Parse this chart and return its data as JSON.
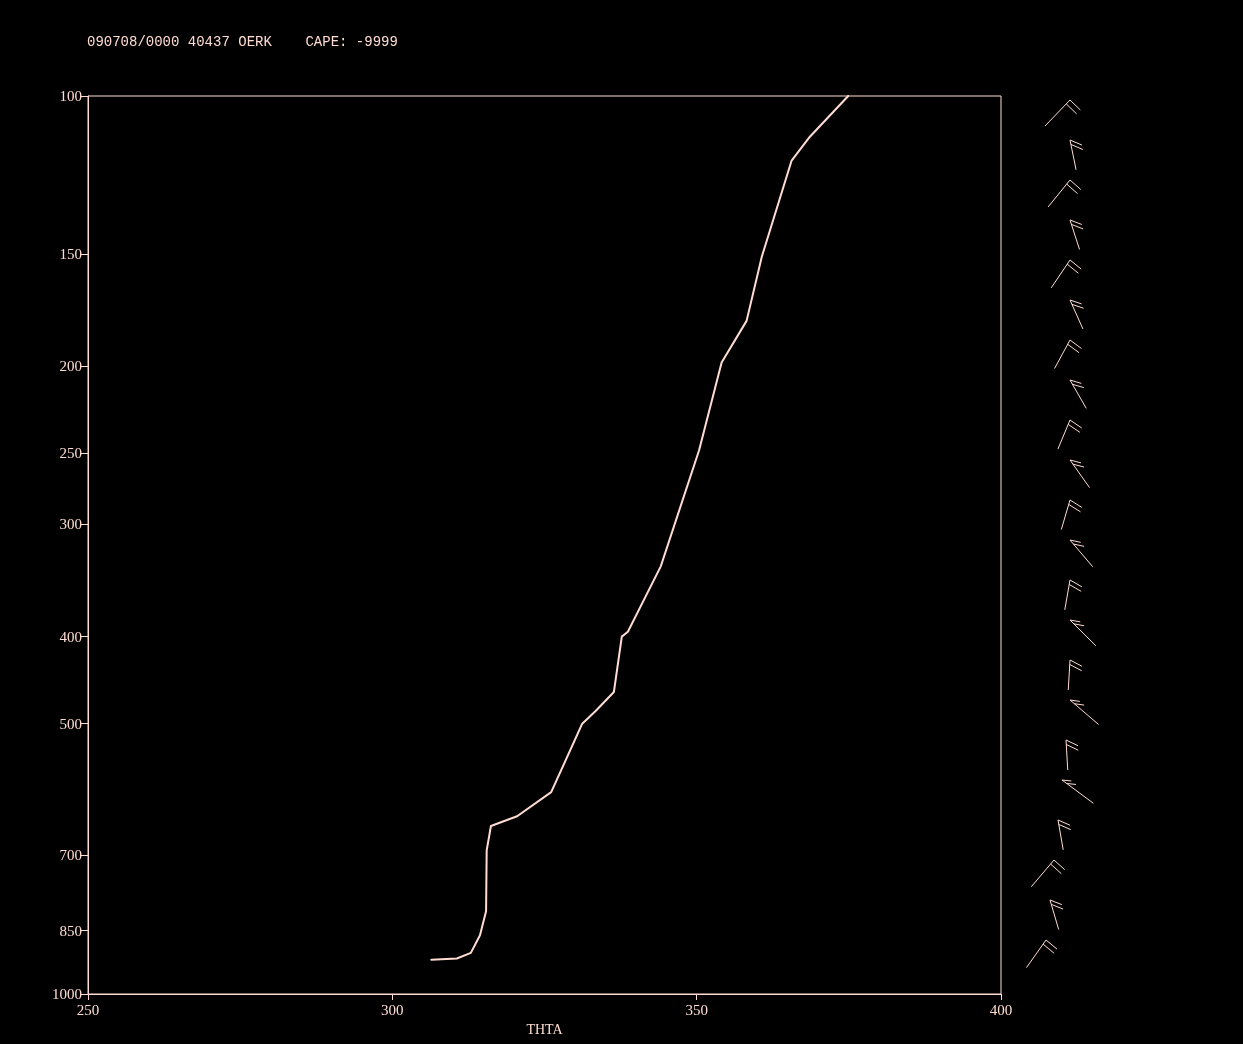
{
  "chart_data": {
    "type": "line",
    "title": "090708/0000 40437 OERK    CAPE: -9999",
    "xlabel": "THTA",
    "x": [
      306.4,
      310.6,
      312.9,
      314.4,
      315.4,
      315.5,
      316.2,
      320.5,
      326.1,
      331.2,
      333.4,
      336.4,
      337.7,
      338.7,
      344.1,
      350.4,
      354.1,
      358.2,
      360.7,
      365.6,
      368.6,
      374.9
    ],
    "values": [
      916,
      913,
      900,
      860,
      809,
      692,
      650,
      634,
      596,
      500,
      484,
      461,
      400,
      395,
      334,
      248,
      198,
      178,
      151,
      118,
      111,
      100
    ],
    "color": "#ffdcd2",
    "xlim": [
      250,
      400
    ],
    "xticks": [
      250,
      300,
      350,
      400
    ],
    "ylim": [
      1000,
      100
    ],
    "yticks": [
      100,
      150,
      200,
      250,
      300,
      400,
      500,
      700,
      850,
      1000
    ],
    "log": "y",
    "marker": "none"
  }
}
